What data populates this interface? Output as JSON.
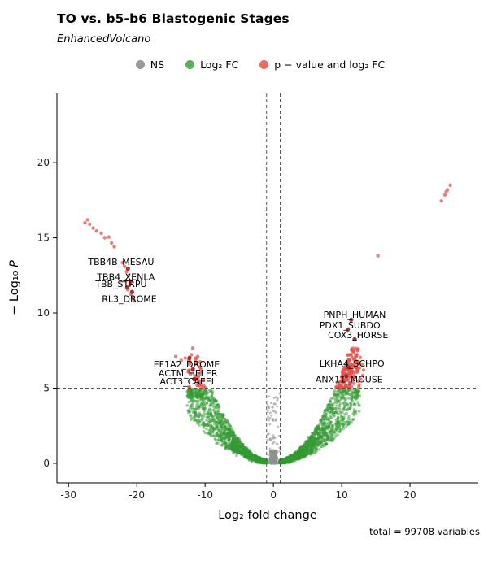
{
  "chart_data": {
    "type": "scatter",
    "title": "TO vs. b5-b6 Blastogenic Stages",
    "subtitle": "EnhancedVolcano",
    "xlabel": "Log₂ fold change",
    "ylabel_prefix": "− Log₁₀ ",
    "ylabel_italic": "P",
    "caption": "total = 99708 variables",
    "xlim": [
      -31.7,
      30
    ],
    "ylim": [
      -1.3,
      24.6
    ],
    "xticks": [
      -30,
      -20,
      -10,
      0,
      10,
      20
    ],
    "yticks": [
      0,
      5,
      10,
      15,
      20
    ],
    "pvalue_threshold_line": 5,
    "fc_threshold_lines": [
      -1,
      1
    ],
    "legend": [
      {
        "label": "NS",
        "color": "#999999"
      },
      {
        "label": "Log₂ FC",
        "color": "#57b257"
      },
      {
        "label": "p − value and log₂ FC",
        "color": "#ef6a62"
      }
    ],
    "colors": {
      "ns": "#8f8f8f",
      "fc": "#339933",
      "sig": "#e04f4a",
      "labeled_point": "#a01f1f",
      "threshold_line": "#555555",
      "axis": "#000000",
      "tick_text": "#222222"
    },
    "labeled_points": [
      {
        "label": "TBB4B_MESAU",
        "x": -21.3,
        "y": 12.95,
        "label_x": -22.3,
        "label_y": 13.4
      },
      {
        "label": "TBB4_XENLA",
        "x": -20.9,
        "y": 12.1,
        "label_x": -21.6,
        "label_y": 12.4
      },
      {
        "label": "TBB_STRPU",
        "x": -21.4,
        "y": 11.7,
        "label_x": -22.3,
        "label_y": 11.95
      },
      {
        "label": "RL3_DROME",
        "x": -20.7,
        "y": 11.4,
        "label_x": -21.1,
        "label_y": 10.95
      },
      {
        "label": "EF1A2_DROME",
        "x": -12.3,
        "y": 7.0,
        "label_x": -12.7,
        "label_y": 6.6
      },
      {
        "label": "ACTM_HELER",
        "x": -11.8,
        "y": 6.25,
        "label_x": -12.5,
        "label_y": 6.0
      },
      {
        "label": "ACT3_CAEEL",
        "x": -11.6,
        "y": 5.6,
        "label_x": -12.5,
        "label_y": 5.45
      },
      {
        "label": "PNPH_HUMAN",
        "x": 11.4,
        "y": 9.55,
        "label_x": 11.9,
        "label_y": 9.9
      },
      {
        "label": "PDX1_SUBDO",
        "x": 10.9,
        "y": 8.9,
        "label_x": 11.2,
        "label_y": 9.2
      },
      {
        "label": "COX3_HORSE",
        "x": 11.9,
        "y": 8.25,
        "label_x": 12.4,
        "label_y": 8.55
      },
      {
        "label": "LKHA4_SCHPO",
        "x": 11.0,
        "y": 6.4,
        "label_x": 11.5,
        "label_y": 6.65
      },
      {
        "label": "ANX11_MOUSE",
        "x": 10.7,
        "y": 5.8,
        "label_x": 11.1,
        "label_y": 5.6
      }
    ],
    "sig_points": [
      [
        -27.6,
        16.0
      ],
      [
        -27.2,
        16.2
      ],
      [
        -26.9,
        15.9
      ],
      [
        -26.4,
        15.65
      ],
      [
        -25.9,
        15.45
      ],
      [
        -25.2,
        15.3
      ],
      [
        -24.7,
        15.0
      ],
      [
        -24.1,
        15.05
      ],
      [
        -23.7,
        14.65
      ],
      [
        -23.3,
        14.4
      ],
      [
        -22.1,
        13.35
      ],
      [
        -21.8,
        13.1
      ],
      [
        -21.5,
        12.75
      ],
      [
        -21.2,
        12.5
      ],
      [
        -21.6,
        12.15
      ],
      [
        -21.0,
        11.9
      ],
      [
        -21.35,
        11.55
      ],
      [
        -20.9,
        11.25
      ],
      [
        -20.6,
        11.05
      ],
      [
        -20.4,
        10.8
      ],
      [
        15.3,
        13.8
      ],
      [
        24.6,
        17.45
      ],
      [
        25.1,
        17.85
      ],
      [
        25.5,
        18.2
      ],
      [
        25.9,
        18.5
      ],
      [
        25.3,
        18.05
      ],
      [
        9.6,
        5.15
      ],
      [
        9.9,
        5.45
      ],
      [
        10.2,
        5.8
      ],
      [
        10.5,
        6.15
      ],
      [
        10.8,
        6.5
      ],
      [
        11.1,
        6.85
      ],
      [
        11.4,
        7.15
      ],
      [
        11.7,
        7.45
      ],
      [
        10.0,
        5.2
      ],
      [
        10.35,
        5.5
      ],
      [
        10.7,
        5.85
      ],
      [
        11.05,
        6.2
      ],
      [
        11.4,
        6.55
      ],
      [
        11.75,
        6.9
      ],
      [
        12.1,
        7.2
      ],
      [
        10.6,
        5.2
      ],
      [
        10.95,
        5.5
      ],
      [
        11.3,
        5.8
      ],
      [
        11.65,
        6.1
      ],
      [
        12.0,
        6.4
      ],
      [
        12.35,
        6.75
      ],
      [
        12.7,
        7.05
      ],
      [
        11.2,
        5.25
      ],
      [
        11.55,
        5.5
      ],
      [
        11.9,
        5.75
      ],
      [
        12.25,
        6.05
      ],
      [
        12.6,
        6.35
      ],
      [
        12.95,
        6.6
      ],
      [
        13.2,
        6.2
      ],
      [
        12.8,
        5.6
      ],
      [
        13.1,
        5.85
      ],
      [
        9.8,
        5.0
      ],
      [
        10.4,
        5.05
      ],
      [
        11.0,
        5.1
      ],
      [
        -10.2,
        5.15
      ],
      [
        -10.7,
        5.45
      ],
      [
        -11.2,
        5.8
      ],
      [
        -11.8,
        6.2
      ],
      [
        -12.3,
        6.6
      ],
      [
        -12.9,
        7.0
      ],
      [
        -14.3,
        7.1
      ],
      [
        -10.0,
        5.05
      ],
      [
        -10.9,
        5.25
      ],
      [
        -11.5,
        5.55
      ],
      [
        -12.1,
        5.95
      ],
      [
        -13.5,
        6.85
      ],
      [
        -10.5,
        5.05
      ],
      [
        -11.05,
        5.35
      ]
    ],
    "cloud": {
      "seed": 13,
      "green_n": 3000,
      "gray_n": 1300,
      "gray_tail_n": 55,
      "k_min": 0.02,
      "k_max": 0.06
    }
  }
}
